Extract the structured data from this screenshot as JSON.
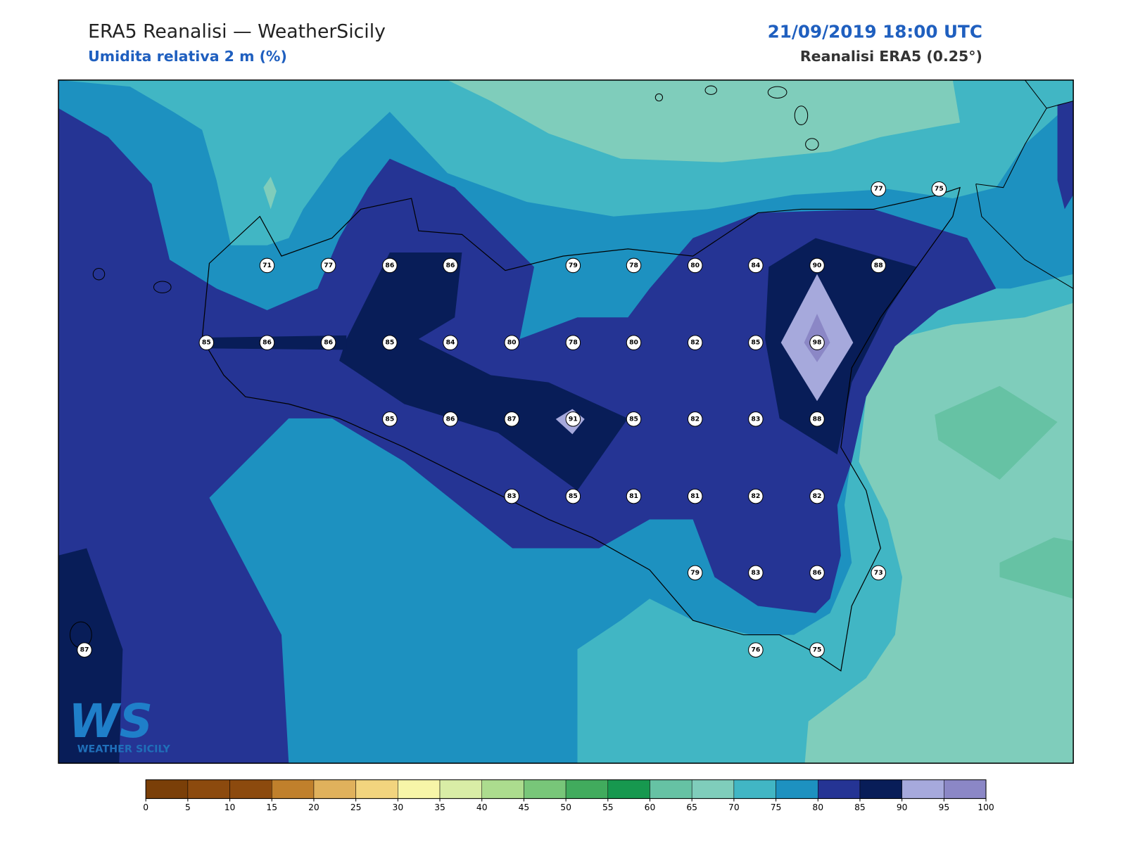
{
  "header": {
    "title": "ERA5 Reanalisi — WeatherSicily",
    "subtitle": "Umidita relativa 2 m (%)",
    "datetime": "21/09/2019 18:00 UTC",
    "source": "Reanalisi ERA5 (0.25°)"
  },
  "stations": [
    77,
    75,
    71,
    77,
    86,
    86,
    79,
    78,
    80,
    84,
    90,
    88,
    85,
    86,
    86,
    85,
    84,
    80,
    78,
    80,
    82,
    85,
    98,
    85,
    86,
    87,
    91,
    85,
    82,
    83,
    88,
    83,
    85,
    81,
    81,
    82,
    82,
    79,
    83,
    86,
    73,
    87,
    76,
    75
  ],
  "colorbar": {
    "ticks": [
      0,
      5,
      10,
      15,
      20,
      25,
      30,
      35,
      40,
      45,
      50,
      55,
      60,
      65,
      70,
      75,
      80,
      85,
      90,
      95,
      100
    ],
    "colors": [
      "#7a3f08",
      "#8c4a0e",
      "#8c4a0e",
      "#c0802c",
      "#e0b15c",
      "#f2d47e",
      "#f7f5a8",
      "#d9eda6",
      "#acdc8e",
      "#78c679",
      "#41ab5d",
      "#17984f",
      "#66c2a4",
      "#7fcdbb",
      "#41b6c4",
      "#1d91c0",
      "#253494",
      "#081d58",
      "#a6a9dc",
      "#8b87c6"
    ]
  },
  "logo": {
    "mark": "WS",
    "name": "WEATHER SICILY"
  }
}
